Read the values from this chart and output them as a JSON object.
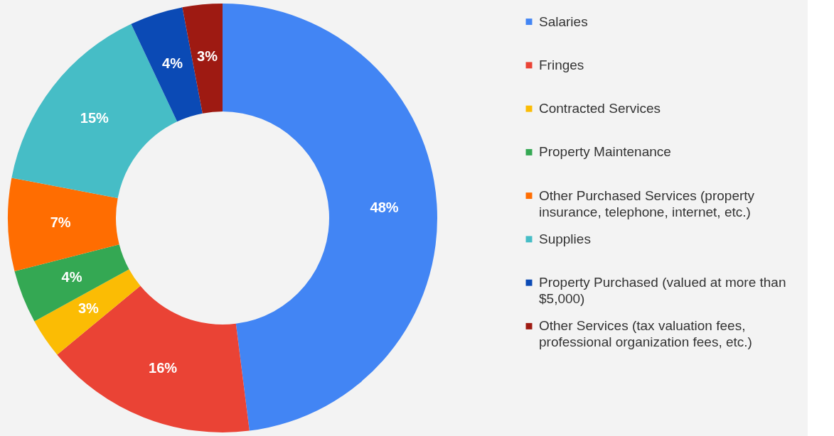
{
  "chart_data": {
    "type": "donut",
    "categories": [
      "Salaries",
      "Fringes",
      "Contracted Services",
      "Property Maintenance",
      "Other Purchased Services (property insurance, telephone, internet, etc.)",
      "Supplies",
      "Property Purchased (valued at more than $5,000)",
      "Other Services (tax valuation fees, professional organization fees, etc.)"
    ],
    "values": [
      48,
      16,
      3,
      4,
      7,
      15,
      4,
      3
    ],
    "colors": [
      "#4285f4",
      "#ea4335",
      "#fbbc04",
      "#34a853",
      "#ff6d01",
      "#46bdc6",
      "#0b4ab5",
      "#9e1a12"
    ],
    "value_labels": [
      "48%",
      "16%",
      "3%",
      "4%",
      "7%",
      "15%",
      "4%",
      "3%"
    ],
    "legend": "right"
  }
}
